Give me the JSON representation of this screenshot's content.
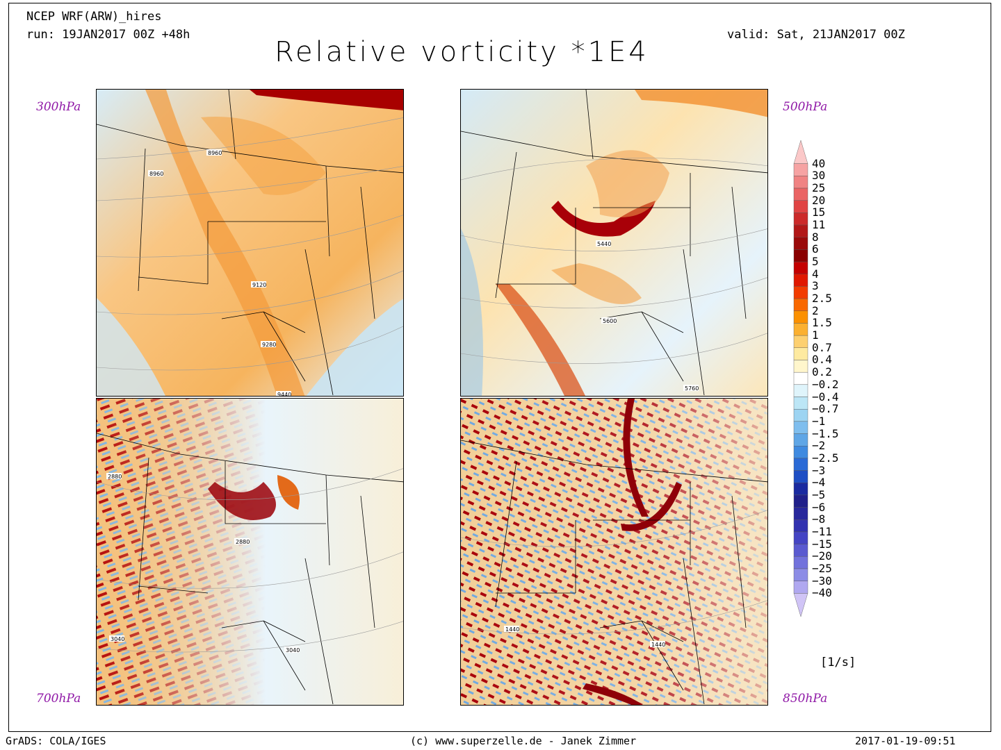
{
  "header": {
    "model": "NCEP WRF(ARW)_hires",
    "run": "run: 19JAN2017 00Z +48h",
    "valid": "valid: Sat, 21JAN2017 00Z",
    "title": "Relative vorticity *1E4"
  },
  "panels": [
    {
      "level": "300hPa",
      "contours": [
        "8960",
        "8960",
        "9120",
        "9280",
        "9440"
      ],
      "base": "#f7c77a",
      "accent": "#e86a10"
    },
    {
      "level": "500hPa",
      "contours": [
        "5440",
        "5600",
        "5760"
      ],
      "base": "#fde6b8",
      "accent": "#b8000a"
    },
    {
      "level": "700hPa",
      "contours": [
        "2880",
        "2880",
        "3040",
        "3040"
      ],
      "base": "#f3c17a",
      "accent": "#b0000a"
    },
    {
      "level": "850hPa",
      "contours": [
        "1440",
        "1440"
      ],
      "base": "#f3d3a0",
      "accent": "#a00008"
    }
  ],
  "colorbar": {
    "units": "[1/s]",
    "labels": [
      "40",
      "30",
      "25",
      "20",
      "15",
      "11",
      "8",
      "6",
      "5",
      "4",
      "3",
      "2.5",
      "2",
      "1.5",
      "1",
      "0.7",
      "0.4",
      "0.2",
      "−0.2",
      "−0.4",
      "−0.7",
      "−1",
      "−1.5",
      "−2",
      "−2.5",
      "−3",
      "−4",
      "−5",
      "−6",
      "−8",
      "−11",
      "−15",
      "−20",
      "−25",
      "−30",
      "−40"
    ],
    "colors": [
      "#fbc8c8",
      "#f6a3a3",
      "#f08383",
      "#ea6464",
      "#e04444",
      "#cc2a2a",
      "#b21818",
      "#9a0a0a",
      "#8a0000",
      "#c40000",
      "#e01800",
      "#f23c00",
      "#f96800",
      "#fb9000",
      "#fbb030",
      "#fdd070",
      "#feeaa0",
      "#fff6cc",
      "#ffffff",
      "#dff4fb",
      "#bce6f6",
      "#9dd4f2",
      "#7fbeee",
      "#5fa6e6",
      "#3f8ae0",
      "#2a6ad6",
      "#1e4ec4",
      "#1a2aa0",
      "#20208a",
      "#28289c",
      "#3232b0",
      "#4444c4",
      "#5a5ad0",
      "#7272dc",
      "#8c8ce6",
      "#b0a8f0",
      "#d0c4f6"
    ]
  },
  "footer": {
    "left": "GrADS: COLA/IGES",
    "center": "(c) www.superzelle.de - Janek Zimmer",
    "right": "2017-01-19-09:51"
  }
}
